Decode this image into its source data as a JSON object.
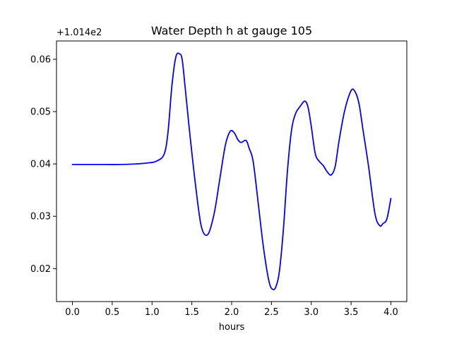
{
  "chart_data": {
    "type": "line",
    "title": "Water Depth h at gauge 105",
    "xlabel": "hours",
    "ylabel": "",
    "y_offset_label": "+1.014e2",
    "xlim": [
      -0.2,
      4.2
    ],
    "ylim": [
      0.0137,
      0.0635
    ],
    "xticks": [
      0.0,
      0.5,
      1.0,
      1.5,
      2.0,
      2.5,
      3.0,
      3.5,
      4.0
    ],
    "xtick_labels": [
      "0.0",
      "0.5",
      "1.0",
      "1.5",
      "2.0",
      "2.5",
      "3.0",
      "3.5",
      "4.0"
    ],
    "yticks": [
      0.02,
      0.03,
      0.04,
      0.05,
      0.06
    ],
    "ytick_labels": [
      "0.02",
      "0.03",
      "0.04",
      "0.05",
      "0.06"
    ],
    "grid": false,
    "series": [
      {
        "color": "#0000ff",
        "x": [
          0.0,
          0.3,
          0.6,
          0.8,
          0.95,
          1.05,
          1.15,
          1.2,
          1.25,
          1.3,
          1.35,
          1.38,
          1.42,
          1.48,
          1.55,
          1.62,
          1.7,
          1.78,
          1.85,
          1.92,
          1.98,
          2.03,
          2.08,
          2.12,
          2.18,
          2.22,
          2.27,
          2.33,
          2.4,
          2.47,
          2.52,
          2.56,
          2.6,
          2.65,
          2.7,
          2.75,
          2.8,
          2.86,
          2.92,
          2.96,
          3.0,
          3.05,
          3.1,
          3.15,
          3.2,
          3.25,
          3.3,
          3.35,
          3.42,
          3.5,
          3.55,
          3.6,
          3.65,
          3.72,
          3.8,
          3.86,
          3.9,
          3.95,
          4.0
        ],
        "y": [
          0.0399,
          0.0399,
          0.0399,
          0.04,
          0.0402,
          0.0405,
          0.0418,
          0.046,
          0.055,
          0.0605,
          0.061,
          0.0598,
          0.054,
          0.045,
          0.0355,
          0.028,
          0.0265,
          0.0305,
          0.037,
          0.0435,
          0.0462,
          0.046,
          0.0446,
          0.0441,
          0.0445,
          0.043,
          0.0405,
          0.033,
          0.024,
          0.0175,
          0.016,
          0.0167,
          0.0195,
          0.0275,
          0.0385,
          0.0462,
          0.0495,
          0.051,
          0.052,
          0.0508,
          0.0472,
          0.042,
          0.0405,
          0.0397,
          0.0385,
          0.0379,
          0.0395,
          0.0445,
          0.0502,
          0.054,
          0.0538,
          0.0515,
          0.0465,
          0.0395,
          0.0305,
          0.0282,
          0.0286,
          0.0295,
          0.0334
        ]
      }
    ]
  }
}
